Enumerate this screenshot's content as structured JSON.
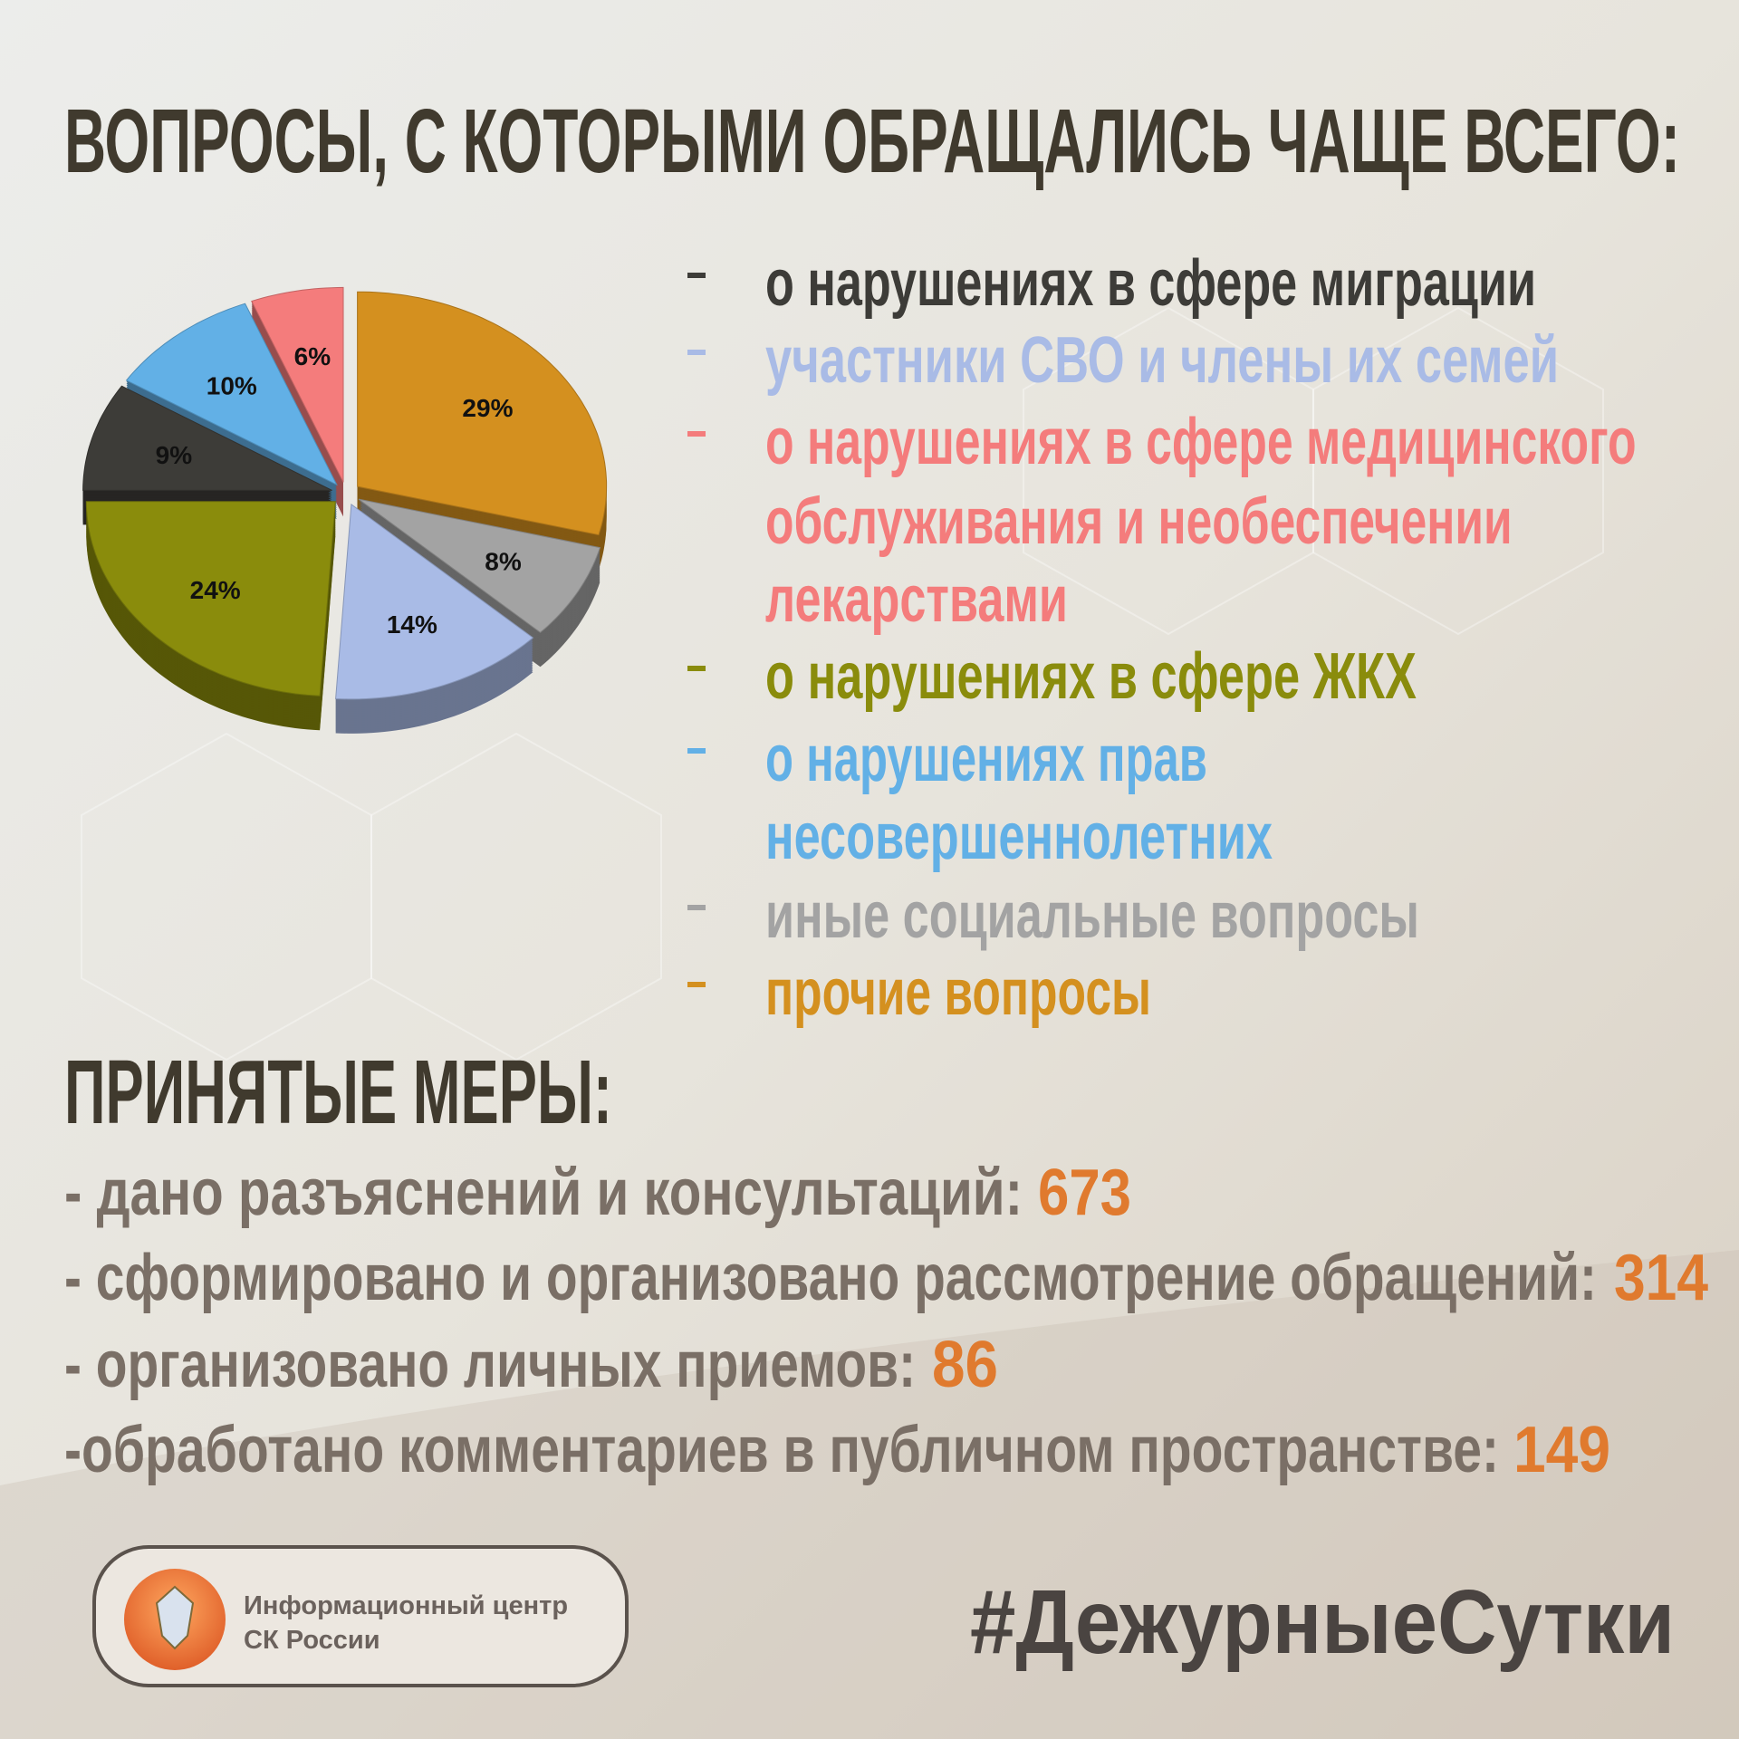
{
  "chart_data": {
    "type": "pie",
    "title": "ВОПРОСЫ, С КОТОРЫМИ ОБРАЩАЛИСЬ ЧАЩЕ ВСЕГО:",
    "categories": [
      "прочие вопросы",
      "иные социальные вопросы",
      "участники СВО и члены их семей",
      "о нарушениях в сфере ЖКХ",
      "о нарушениях в сфере миграции",
      "о нарушениях прав несовершеннолетних",
      "о нарушениях в сфере медицинского обслуживания и необеспечении лекарствами"
    ],
    "values": [
      29,
      8,
      14,
      24,
      9,
      10,
      6
    ],
    "value_labels": [
      "29%",
      "8%",
      "14%",
      "24%",
      "9%",
      "10%",
      "6%"
    ],
    "colors": [
      "#d4901f",
      "#a3a3a3",
      "#a9bbe6",
      "#8a8c0c",
      "#3d3c38",
      "#62b0e6",
      "#f47c7c"
    ]
  },
  "measures": {
    "title": "ПРИНЯТЫЕ МЕРЫ:",
    "items": [
      {
        "label": "- дано разъяснений и консультаций:",
        "value": 673
      },
      {
        "label": "- сформировано и организовано рассмотрение обращений:",
        "value": 314
      },
      {
        "label": "- организовано личных приемов:",
        "value": 86
      },
      {
        "label": "-обработано комментариев в публичном пространстве:",
        "value": 149
      }
    ]
  },
  "footer": {
    "logo_lines": [
      "Информационный центр",
      "СК России"
    ],
    "hashtag": "#ДежурныеСутки"
  }
}
